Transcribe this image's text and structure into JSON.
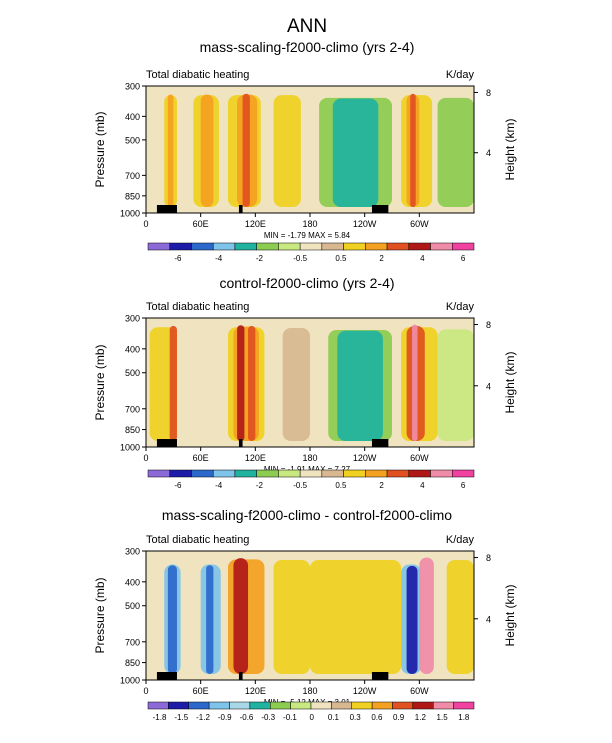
{
  "figure_title": "ANN",
  "chart_data": [
    {
      "type": "heatmap",
      "title": "mass-scaling-f2000-climo (yrs 2-4)",
      "left_label": "Total diabatic heating",
      "units": "K/day",
      "ylabel": "Pressure (mb)",
      "ylabel_right": "Height (km)",
      "x_ticks": [
        "0",
        "60E",
        "120E",
        "180",
        "120W",
        "60W"
      ],
      "x_tick_lon": [
        0,
        60,
        120,
        180,
        240,
        300
      ],
      "xlim": [
        0,
        360
      ],
      "y_ticks": [
        "300",
        "400",
        "500",
        "700",
        "850",
        "1000"
      ],
      "y_tick_p": [
        300,
        400,
        500,
        700,
        850,
        1000
      ],
      "ylim": [
        1000,
        300
      ],
      "y_right_ticks": [
        "8",
        "4"
      ],
      "y_right_km": [
        8,
        4
      ],
      "stats": "MIN = -1.79  MAX =  5.84",
      "min": -1.79,
      "max": 5.84,
      "colorbar_levels": [
        "-6",
        "-4",
        "-2",
        "-0.5",
        "0.5",
        "2",
        "4",
        "6"
      ],
      "colorbar_colors": [
        "#8c6bd8",
        "#1c1ca8",
        "#2b68cc",
        "#7ec3e8",
        "#1fb3a0",
        "#8ccc50",
        "#c8e880",
        "#f0e4c0",
        "#d8b890",
        "#f0d020",
        "#f4a020",
        "#e05020",
        "#b01818",
        "#f08ca8",
        "#f040a0"
      ],
      "bands": [
        {
          "x": 20,
          "w": 14,
          "level": 9,
          "fill": "#f0d020"
        },
        {
          "x": 24,
          "w": 6,
          "level": 10,
          "fill": "#f4a020"
        },
        {
          "x": 52,
          "w": 28,
          "level": 9,
          "fill": "#f0d020"
        },
        {
          "x": 60,
          "w": 14,
          "level": 10,
          "fill": "#f4a020"
        },
        {
          "x": 90,
          "w": 36,
          "level": 9,
          "fill": "#f0d020"
        },
        {
          "x": 100,
          "w": 22,
          "level": 10,
          "fill": "#f4a020"
        },
        {
          "x": 106,
          "w": 8,
          "level": 11,
          "fill": "#e05020"
        },
        {
          "x": 140,
          "w": 30,
          "level": 9,
          "fill": "#f0d020"
        },
        {
          "x": 190,
          "w": 80,
          "level": 5,
          "fill": "#8ccc50"
        },
        {
          "x": 205,
          "w": 50,
          "level": 4,
          "fill": "#1fb3a0"
        },
        {
          "x": 280,
          "w": 34,
          "level": 9,
          "fill": "#f0d020"
        },
        {
          "x": 286,
          "w": 14,
          "level": 10,
          "fill": "#f4a020"
        },
        {
          "x": 290,
          "w": 6,
          "level": 11,
          "fill": "#e05020"
        },
        {
          "x": 320,
          "w": 40,
          "level": 5,
          "fill": "#8ccc50"
        }
      ]
    },
    {
      "type": "heatmap",
      "title": "control-f2000-climo (yrs 2-4)",
      "left_label": "Total diabatic heating",
      "units": "K/day",
      "ylabel": "Pressure (mb)",
      "ylabel_right": "Height (km)",
      "x_ticks": [
        "0",
        "60E",
        "120E",
        "180",
        "120W",
        "60W"
      ],
      "x_tick_lon": [
        0,
        60,
        120,
        180,
        240,
        300
      ],
      "xlim": [
        0,
        360
      ],
      "y_ticks": [
        "300",
        "400",
        "500",
        "700",
        "850",
        "1000"
      ],
      "y_tick_p": [
        300,
        400,
        500,
        700,
        850,
        1000
      ],
      "ylim": [
        1000,
        300
      ],
      "y_right_ticks": [
        "8",
        "4"
      ],
      "y_right_km": [
        8,
        4
      ],
      "stats": "MIN = -1.91  MAX =  7.27",
      "min": -1.91,
      "max": 7.27,
      "colorbar_levels": [
        "-6",
        "-4",
        "-2",
        "-0.5",
        "0.5",
        "2",
        "4",
        "6"
      ],
      "colorbar_colors": [
        "#8c6bd8",
        "#1c1ca8",
        "#2b68cc",
        "#7ec3e8",
        "#1fb3a0",
        "#8ccc50",
        "#c8e880",
        "#f0e4c0",
        "#d8b890",
        "#f0d020",
        "#f4a020",
        "#e05020",
        "#b01818",
        "#f08ca8",
        "#f040a0"
      ],
      "bands": [
        {
          "x": 4,
          "w": 30,
          "level": 9,
          "fill": "#f0d020"
        },
        {
          "x": 26,
          "w": 8,
          "level": 11,
          "fill": "#e05020"
        },
        {
          "x": 90,
          "w": 40,
          "level": 9,
          "fill": "#f0d020"
        },
        {
          "x": 96,
          "w": 28,
          "level": 10,
          "fill": "#f4a020"
        },
        {
          "x": 100,
          "w": 8,
          "level": 12,
          "fill": "#b01818"
        },
        {
          "x": 112,
          "w": 8,
          "level": 11,
          "fill": "#e05020"
        },
        {
          "x": 150,
          "w": 30,
          "level": 8,
          "fill": "#d8b890"
        },
        {
          "x": 200,
          "w": 70,
          "level": 5,
          "fill": "#8ccc50"
        },
        {
          "x": 210,
          "w": 50,
          "level": 4,
          "fill": "#1fb3a0"
        },
        {
          "x": 280,
          "w": 40,
          "level": 9,
          "fill": "#f0d020"
        },
        {
          "x": 286,
          "w": 20,
          "level": 11,
          "fill": "#e05020"
        },
        {
          "x": 292,
          "w": 6,
          "level": 13,
          "fill": "#f08ca8"
        },
        {
          "x": 320,
          "w": 40,
          "level": 6,
          "fill": "#c8e880"
        }
      ]
    },
    {
      "type": "heatmap",
      "title": "mass-scaling-f2000-climo - control-f2000-climo",
      "left_label": "Total diabatic heating",
      "units": "K/day",
      "ylabel": "Pressure (mb)",
      "ylabel_right": "Height (km)",
      "x_ticks": [
        "0",
        "60E",
        "120E",
        "180",
        "120W",
        "60W"
      ],
      "x_tick_lon": [
        0,
        60,
        120,
        180,
        240,
        300
      ],
      "xlim": [
        0,
        360
      ],
      "y_ticks": [
        "300",
        "400",
        "500",
        "700",
        "850",
        "1000"
      ],
      "y_tick_p": [
        300,
        400,
        500,
        700,
        850,
        1000
      ],
      "ylim": [
        1000,
        300
      ],
      "y_right_ticks": [
        "8",
        "4"
      ],
      "y_right_km": [
        8,
        4
      ],
      "stats": "MIN = -5.12  MAX =  3.01",
      "min": -5.12,
      "max": 3.01,
      "colorbar_levels": [
        "-1.8",
        "-1.5",
        "-1.2",
        "-0.9",
        "-0.6",
        "-0.3",
        "-0.1",
        "0",
        "0.1",
        "0.3",
        "0.6",
        "0.9",
        "1.2",
        "1.5",
        "1.8"
      ],
      "colorbar_colors": [
        "#8c6bd8",
        "#1c1ca8",
        "#2b68cc",
        "#7ec3e8",
        "#a8d8e8",
        "#1fb3a0",
        "#8ccc50",
        "#c8e880",
        "#f0e4c0",
        "#d8b890",
        "#f0d020",
        "#f4a020",
        "#e05020",
        "#b01818",
        "#f08ca8",
        "#f040a0"
      ],
      "bands": [
        {
          "x": 20,
          "w": 18,
          "level": 3,
          "fill": "#7ec3e8"
        },
        {
          "x": 24,
          "w": 10,
          "level": 2,
          "fill": "#2b68cc"
        },
        {
          "x": 60,
          "w": 22,
          "level": 3,
          "fill": "#7ec3e8"
        },
        {
          "x": 66,
          "w": 8,
          "level": 2,
          "fill": "#2b68cc"
        },
        {
          "x": 90,
          "w": 40,
          "level": 11,
          "fill": "#f4a020"
        },
        {
          "x": 96,
          "w": 16,
          "level": 13,
          "fill": "#b01818"
        },
        {
          "x": 140,
          "w": 40,
          "level": 10,
          "fill": "#f0d020"
        },
        {
          "x": 180,
          "w": 100,
          "level": 10,
          "fill": "#f0d020"
        },
        {
          "x": 280,
          "w": 22,
          "level": 3,
          "fill": "#7ec3e8"
        },
        {
          "x": 286,
          "w": 12,
          "level": 1,
          "fill": "#1c1ca8"
        },
        {
          "x": 300,
          "w": 16,
          "level": 14,
          "fill": "#f08ca8"
        },
        {
          "x": 330,
          "w": 30,
          "level": 10,
          "fill": "#f0d020"
        }
      ]
    }
  ]
}
